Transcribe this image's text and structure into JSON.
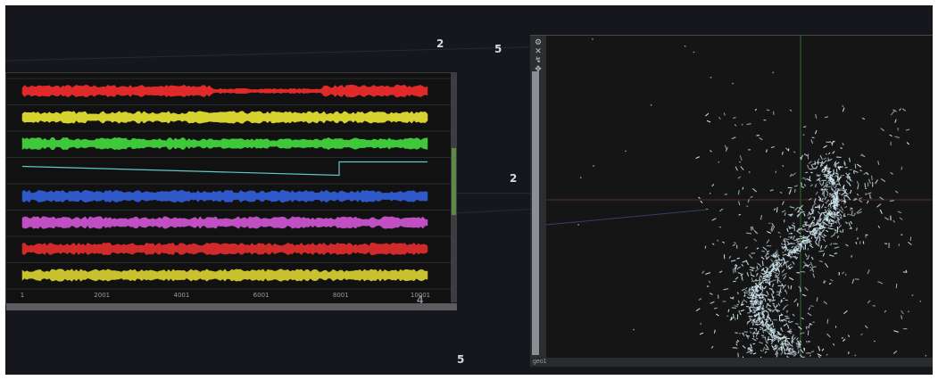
{
  "floating_labels": {
    "top_center": "2",
    "right_of_center": "5",
    "middle": "2",
    "bottom": "5"
  },
  "chop_viewer": {
    "x_ticks": [
      "1",
      "2001",
      "4001",
      "6001",
      "8001",
      "10001"
    ],
    "index": "4",
    "channels": [
      {
        "color": "#e02a2a",
        "kind": "noise"
      },
      {
        "color": "#d8d230",
        "kind": "noise"
      },
      {
        "color": "#3fc83a",
        "kind": "noise"
      },
      {
        "color": "#5fc9c9",
        "kind": "ramp"
      },
      {
        "color": "#2f58c8",
        "kind": "noise"
      },
      {
        "color": "#c14fc4",
        "kind": "noise"
      },
      {
        "color": "#d02a2a",
        "kind": "noise"
      },
      {
        "color": "#c9c12e",
        "kind": "noise"
      }
    ]
  },
  "geo_viewer": {
    "footer_label": "geo1",
    "tool_icons": [
      "gear-icon",
      "x-icon",
      "pin-icon",
      "move-icon"
    ]
  },
  "colors": {
    "background": "#15171c",
    "particles": "#cfe6ef",
    "scrollbar_thumb": "#5a8a46"
  }
}
